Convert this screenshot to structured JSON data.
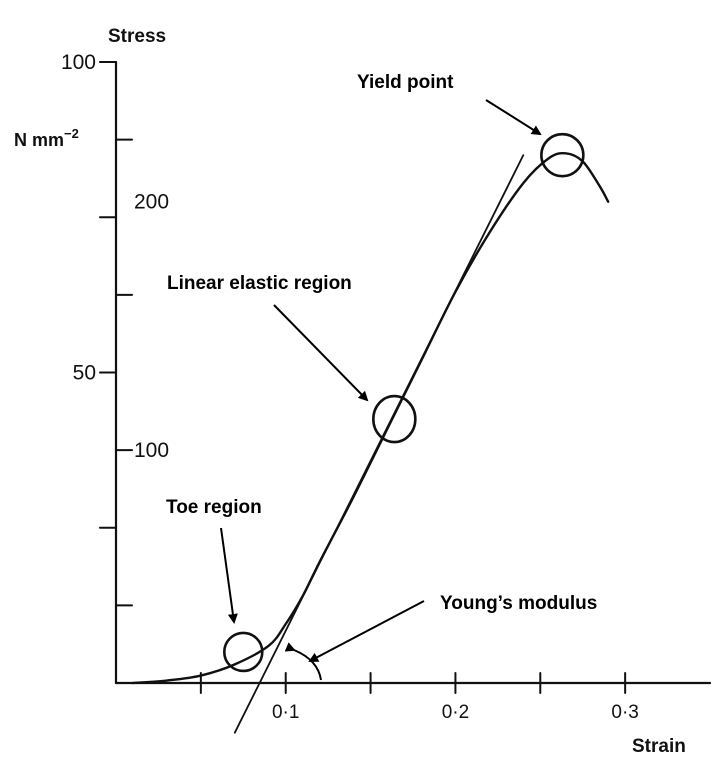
{
  "chart_data": {
    "type": "line",
    "title": "",
    "xlabel": "Strain",
    "ylabel": "Stress",
    "yunit_base": "N mm",
    "yunit_exp": "−2",
    "xlim": [
      0,
      0.35
    ],
    "ylim": [
      0,
      100
    ],
    "x_ticks": [
      0.05,
      0.1,
      0.15,
      0.2,
      0.25,
      0.3
    ],
    "x_tick_labels": [
      {
        "x": 0.1,
        "label": "0·1"
      },
      {
        "x": 0.2,
        "label": "0·2"
      },
      {
        "x": 0.3,
        "label": "0·3"
      }
    ],
    "y_ticks": [
      25,
      50,
      75,
      100
    ],
    "y_tick_labels": [
      {
        "y": 50,
        "label": "50"
      },
      {
        "y": 100,
        "label": "100"
      }
    ],
    "y_inner_ticks": [
      12.5,
      37.5,
      62.5,
      87.5
    ],
    "y_inner_labels": [
      {
        "y": 37.5,
        "label": "100"
      },
      {
        "y": 77.5,
        "label": "200"
      }
    ],
    "grid": false,
    "curve": [
      [
        0.01,
        0.0
      ],
      [
        0.03,
        0.4
      ],
      [
        0.05,
        1.2
      ],
      [
        0.07,
        3.0
      ],
      [
        0.09,
        6.0
      ],
      [
        0.1,
        9.5
      ],
      [
        0.11,
        14.0
      ],
      [
        0.12,
        19.5
      ],
      [
        0.14,
        30.0
      ],
      [
        0.16,
        41.0
      ],
      [
        0.18,
        52.0
      ],
      [
        0.2,
        63.0
      ],
      [
        0.22,
        72.5
      ],
      [
        0.24,
        80.5
      ],
      [
        0.255,
        84.5
      ],
      [
        0.265,
        85.3
      ],
      [
        0.275,
        84.0
      ],
      [
        0.285,
        80.0
      ],
      [
        0.29,
        77.5
      ]
    ],
    "tangent_line": [
      [
        0.07,
        -8.0
      ],
      [
        0.24,
        85.0
      ]
    ],
    "annotations": [
      {
        "label": "Yield point",
        "circle_at": [
          0.263,
          85.0
        ]
      },
      {
        "label": "Linear elastic region",
        "circle_at": [
          0.164,
          42.5
        ]
      },
      {
        "label": "Toe region",
        "circle_at": [
          0.075,
          5.0
        ]
      },
      {
        "label": "Young’s modulus"
      }
    ]
  }
}
